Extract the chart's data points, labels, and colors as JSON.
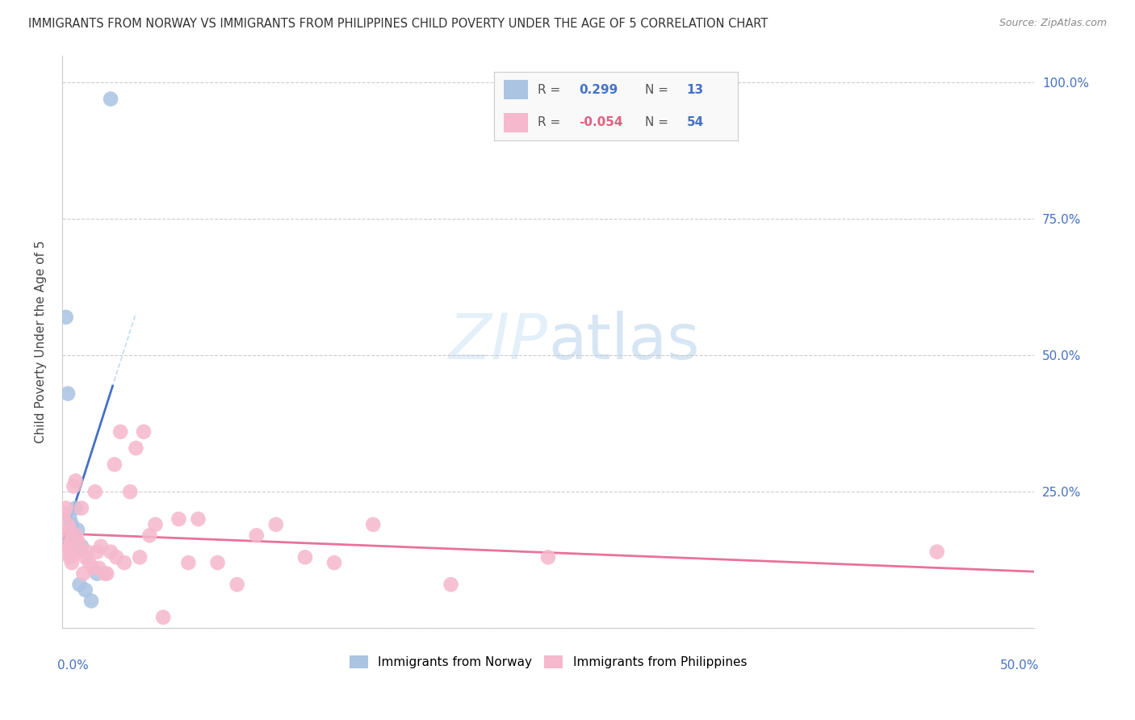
{
  "title": "IMMIGRANTS FROM NORWAY VS IMMIGRANTS FROM PHILIPPINES CHILD POVERTY UNDER THE AGE OF 5 CORRELATION CHART",
  "source": "Source: ZipAtlas.com",
  "ylabel": "Child Poverty Under the Age of 5",
  "norway_R": 0.299,
  "norway_N": 13,
  "philippines_R": -0.054,
  "philippines_N": 54,
  "norway_color": "#aac4e2",
  "norway_line_color": "#4472c4",
  "philippines_color": "#f5b8cc",
  "philippines_line_color": "#e8729a",
  "norway_x": [
    0.002,
    0.003,
    0.004,
    0.005,
    0.006,
    0.007,
    0.008,
    0.009,
    0.01,
    0.012,
    0.015,
    0.018,
    0.025
  ],
  "norway_y": [
    0.57,
    0.43,
    0.2,
    0.19,
    0.17,
    0.22,
    0.18,
    0.08,
    0.15,
    0.07,
    0.05,
    0.1,
    0.97
  ],
  "philippines_x": [
    0.001,
    0.002,
    0.002,
    0.003,
    0.003,
    0.003,
    0.004,
    0.004,
    0.005,
    0.005,
    0.006,
    0.006,
    0.007,
    0.007,
    0.008,
    0.008,
    0.009,
    0.01,
    0.011,
    0.012,
    0.013,
    0.014,
    0.016,
    0.017,
    0.018,
    0.019,
    0.02,
    0.022,
    0.023,
    0.025,
    0.027,
    0.028,
    0.03,
    0.032,
    0.035,
    0.038,
    0.04,
    0.042,
    0.045,
    0.048,
    0.052,
    0.06,
    0.065,
    0.07,
    0.08,
    0.09,
    0.1,
    0.11,
    0.125,
    0.14,
    0.16,
    0.2,
    0.25,
    0.45
  ],
  "philippines_y": [
    0.21,
    0.22,
    0.17,
    0.15,
    0.14,
    0.19,
    0.18,
    0.13,
    0.16,
    0.12,
    0.14,
    0.26,
    0.27,
    0.17,
    0.16,
    0.14,
    0.15,
    0.22,
    0.1,
    0.13,
    0.14,
    0.12,
    0.11,
    0.25,
    0.14,
    0.11,
    0.15,
    0.1,
    0.1,
    0.14,
    0.3,
    0.13,
    0.36,
    0.12,
    0.25,
    0.33,
    0.13,
    0.36,
    0.17,
    0.19,
    0.02,
    0.2,
    0.12,
    0.2,
    0.12,
    0.08,
    0.17,
    0.19,
    0.13,
    0.12,
    0.19,
    0.08,
    0.13,
    0.14
  ],
  "xlim": [
    0,
    0.5
  ],
  "ylim": [
    0,
    1.05
  ],
  "yticks": [
    0.0,
    0.25,
    0.5,
    0.75,
    1.0
  ],
  "ytick_labels": [
    "",
    "25.0%",
    "50.0%",
    "75.0%",
    "100.0%"
  ]
}
